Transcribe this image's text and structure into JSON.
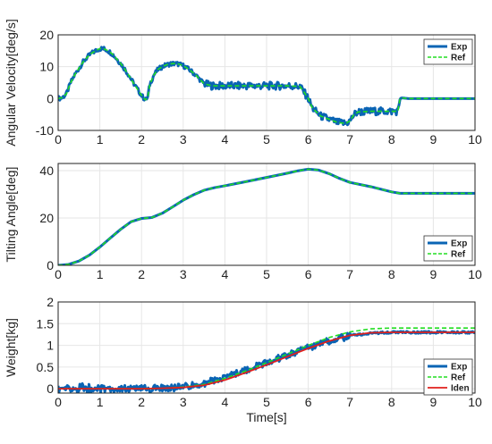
{
  "colors": {
    "exp": "#0a64b4",
    "ref": "#22dd22",
    "iden": "#e0201c",
    "grid": "#e6e6e6",
    "axis": "#222222"
  },
  "chart_data": [
    {
      "type": "line",
      "xlabel": "",
      "ylabel": "Angular Velocity[deg/s]",
      "xlim": [
        0,
        10
      ],
      "ylim": [
        -10,
        20
      ],
      "xticks": [
        "0",
        "1",
        "2",
        "3",
        "4",
        "5",
        "6",
        "7",
        "8",
        "9",
        "10"
      ],
      "yticks": [
        "-10",
        "0",
        "10",
        "20"
      ],
      "ytick_values": [
        -10,
        0,
        10,
        20
      ],
      "grid": true,
      "legend": "top-right",
      "series": [
        {
          "name": "Exp",
          "style": "solid-thick",
          "color_key": "exp",
          "noise": 1.2,
          "x": [
            0,
            0.1,
            0.2,
            0.3,
            0.4,
            0.5,
            0.6,
            0.7,
            0.8,
            0.9,
            1.0,
            1.1,
            1.2,
            1.3,
            1.4,
            1.5,
            1.6,
            1.7,
            1.8,
            1.9,
            2.0,
            2.05,
            2.1,
            2.15,
            2.2,
            2.3,
            2.4,
            2.5,
            2.6,
            2.7,
            2.8,
            2.9,
            3.0,
            3.1,
            3.2,
            3.3,
            3.4,
            3.5,
            3.6,
            3.7,
            4.0,
            4.5,
            5.0,
            5.5,
            5.8,
            5.9,
            6.0,
            6.1,
            6.3,
            6.5,
            6.7,
            6.9,
            7.0,
            7.1,
            7.2,
            7.5,
            7.8,
            8.0,
            8.15,
            8.2,
            8.25,
            8.4,
            9.0,
            9.5,
            10.0
          ],
          "y": [
            0,
            0.3,
            1.5,
            5,
            7.5,
            9.5,
            11.5,
            13,
            14.2,
            15,
            15.7,
            15.6,
            15,
            14,
            12.5,
            11,
            9.2,
            7.2,
            5,
            3,
            1,
            0.2,
            -0.4,
            0.5,
            4.5,
            7.5,
            9.2,
            10,
            10.6,
            10.9,
            11,
            10.8,
            10.3,
            9.5,
            8.5,
            7.4,
            6,
            4.7,
            4.3,
            4,
            4,
            4,
            4,
            4,
            3.8,
            2,
            0,
            -3,
            -5.5,
            -6.5,
            -7.5,
            -7.8,
            -7,
            -5,
            -4.2,
            -4,
            -4,
            -4,
            -4,
            0,
            0.2,
            0,
            0,
            0,
            0
          ]
        },
        {
          "name": "Ref",
          "style": "dashed",
          "color_key": "ref",
          "noise": 0,
          "x": [
            0,
            0.1,
            0.2,
            0.3,
            0.4,
            0.5,
            0.6,
            0.7,
            0.8,
            0.9,
            1.0,
            1.1,
            1.2,
            1.3,
            1.4,
            1.5,
            1.6,
            1.7,
            1.8,
            1.9,
            2.0,
            2.05,
            2.1,
            2.15,
            2.2,
            2.3,
            2.4,
            2.5,
            2.6,
            2.7,
            2.8,
            2.9,
            3.0,
            3.1,
            3.2,
            3.3,
            3.4,
            3.5,
            3.6,
            3.7,
            4.0,
            4.5,
            5.0,
            5.5,
            5.8,
            5.9,
            6.0,
            6.1,
            6.3,
            6.5,
            6.7,
            6.9,
            7.0,
            7.1,
            7.2,
            7.5,
            7.8,
            8.0,
            8.15,
            8.2,
            8.25,
            8.4,
            9.0,
            9.5,
            10.0
          ],
          "y": [
            0,
            0.3,
            1.5,
            5,
            7.5,
            9.5,
            11.5,
            13,
            14.2,
            15,
            15.7,
            15.6,
            15,
            14,
            12.5,
            11,
            9.2,
            7.2,
            5,
            3,
            1,
            0.2,
            -0.4,
            0.5,
            4.5,
            7.5,
            9.2,
            10,
            10.6,
            10.9,
            11,
            10.8,
            10.3,
            9.5,
            8.5,
            7.4,
            6,
            4.7,
            4.3,
            4,
            4,
            4,
            4,
            4,
            3.8,
            2,
            0,
            -3,
            -5.5,
            -6.5,
            -7.5,
            -7.8,
            -7,
            -5,
            -4.2,
            -4,
            -4,
            -4,
            -4,
            0,
            0.2,
            0,
            0,
            0,
            0
          ]
        }
      ]
    },
    {
      "type": "line",
      "xlabel": "",
      "ylabel": "Tilting Angle[deg]",
      "xlim": [
        0,
        10
      ],
      "ylim": [
        0,
        43
      ],
      "xticks": [
        "0",
        "1",
        "2",
        "3",
        "4",
        "5",
        "6",
        "7",
        "8",
        "9",
        "10"
      ],
      "yticks": [
        "0",
        "20",
        "40"
      ],
      "ytick_values": [
        0,
        20,
        40
      ],
      "grid": true,
      "legend": "bottom-right",
      "series": [
        {
          "name": "Exp",
          "style": "solid-thick",
          "color_key": "exp",
          "noise": 0,
          "x": [
            0,
            0.25,
            0.5,
            0.75,
            1.0,
            1.25,
            1.5,
            1.75,
            2.0,
            2.25,
            2.5,
            2.75,
            3.0,
            3.25,
            3.5,
            3.75,
            4.0,
            4.5,
            5.0,
            5.5,
            5.75,
            6.0,
            6.25,
            6.5,
            6.75,
            7.0,
            7.5,
            8.0,
            8.2,
            8.5,
            9.0,
            9.5,
            10.0
          ],
          "y": [
            0,
            0.4,
            1.8,
            4.3,
            7.7,
            11.5,
            15.2,
            18.4,
            19.8,
            20.2,
            22,
            24.7,
            27.5,
            29.8,
            31.7,
            32.8,
            33.6,
            35.3,
            37.1,
            38.9,
            39.9,
            40.6,
            40.2,
            38.7,
            36.7,
            35,
            33.2,
            31,
            30.4,
            30.4,
            30.4,
            30.4,
            30.4
          ]
        },
        {
          "name": "Ref",
          "style": "dashed",
          "color_key": "ref",
          "noise": 0,
          "x": [
            0,
            0.25,
            0.5,
            0.75,
            1.0,
            1.25,
            1.5,
            1.75,
            2.0,
            2.25,
            2.5,
            2.75,
            3.0,
            3.25,
            3.5,
            3.75,
            4.0,
            4.5,
            5.0,
            5.5,
            5.75,
            6.0,
            6.25,
            6.5,
            6.75,
            7.0,
            7.5,
            8.0,
            8.2,
            8.5,
            9.0,
            9.5,
            10.0
          ],
          "y": [
            0,
            0.4,
            1.8,
            4.3,
            7.7,
            11.5,
            15.2,
            18.4,
            19.8,
            20.2,
            22,
            24.7,
            27.5,
            29.8,
            31.7,
            32.8,
            33.6,
            35.3,
            37.1,
            38.9,
            39.9,
            40.6,
            40.2,
            38.7,
            36.7,
            35,
            33.2,
            31,
            30.4,
            30.4,
            30.4,
            30.4,
            30.4
          ]
        }
      ]
    },
    {
      "type": "line",
      "xlabel": "Time[s]",
      "ylabel": "Weight[kg]",
      "xlim": [
        0,
        10
      ],
      "ylim": [
        -0.1,
        2
      ],
      "xticks": [
        "0",
        "1",
        "2",
        "3",
        "4",
        "5",
        "6",
        "7",
        "8",
        "9",
        "10"
      ],
      "yticks": [
        "0",
        "0.5",
        "1",
        "1.5",
        "2"
      ],
      "ytick_values": [
        0,
        0.5,
        1,
        1.5,
        2
      ],
      "grid": true,
      "legend": "bottom-right",
      "series": [
        {
          "name": "Exp",
          "style": "solid-thick",
          "color_key": "exp",
          "noise": 0.08,
          "x": [
            0,
            0.5,
            1.0,
            1.5,
            2.0,
            2.5,
            3.0,
            3.5,
            4.0,
            4.5,
            5.0,
            5.5,
            6.0,
            6.5,
            7.0,
            7.5,
            8.0,
            8.5,
            9.0,
            9.5,
            10.0
          ],
          "y": [
            0,
            0,
            0,
            0,
            0,
            0.01,
            0.04,
            0.12,
            0.27,
            0.43,
            0.6,
            0.77,
            0.95,
            1.1,
            1.22,
            1.28,
            1.3,
            1.3,
            1.3,
            1.3,
            1.3
          ]
        },
        {
          "name": "Ref",
          "style": "dashed",
          "color_key": "ref",
          "noise": 0,
          "x": [
            0,
            0.5,
            1.0,
            1.5,
            2.0,
            2.5,
            3.0,
            3.5,
            4.0,
            4.5,
            5.0,
            5.5,
            6.0,
            6.5,
            7.0,
            7.5,
            8.0,
            8.5,
            9.0,
            9.5,
            10.0
          ],
          "y": [
            0,
            0,
            0,
            0,
            0,
            0.01,
            0.04,
            0.1,
            0.24,
            0.41,
            0.6,
            0.8,
            1.0,
            1.18,
            1.31,
            1.38,
            1.4,
            1.4,
            1.4,
            1.4,
            1.4
          ]
        },
        {
          "name": "Iden",
          "style": "solid",
          "color_key": "iden",
          "noise": 0,
          "x": [
            0,
            0.5,
            1.0,
            1.5,
            2.0,
            2.5,
            3.0,
            3.5,
            4.0,
            4.5,
            5.0,
            5.5,
            6.0,
            6.5,
            7.0,
            7.5,
            8.0,
            8.5,
            9.0,
            9.5,
            10.0
          ],
          "y": [
            0,
            0,
            0,
            0,
            0,
            0.01,
            0.03,
            0.08,
            0.2,
            0.37,
            0.55,
            0.74,
            0.93,
            1.1,
            1.23,
            1.29,
            1.3,
            1.3,
            1.3,
            1.3,
            1.3
          ]
        }
      ]
    }
  ]
}
